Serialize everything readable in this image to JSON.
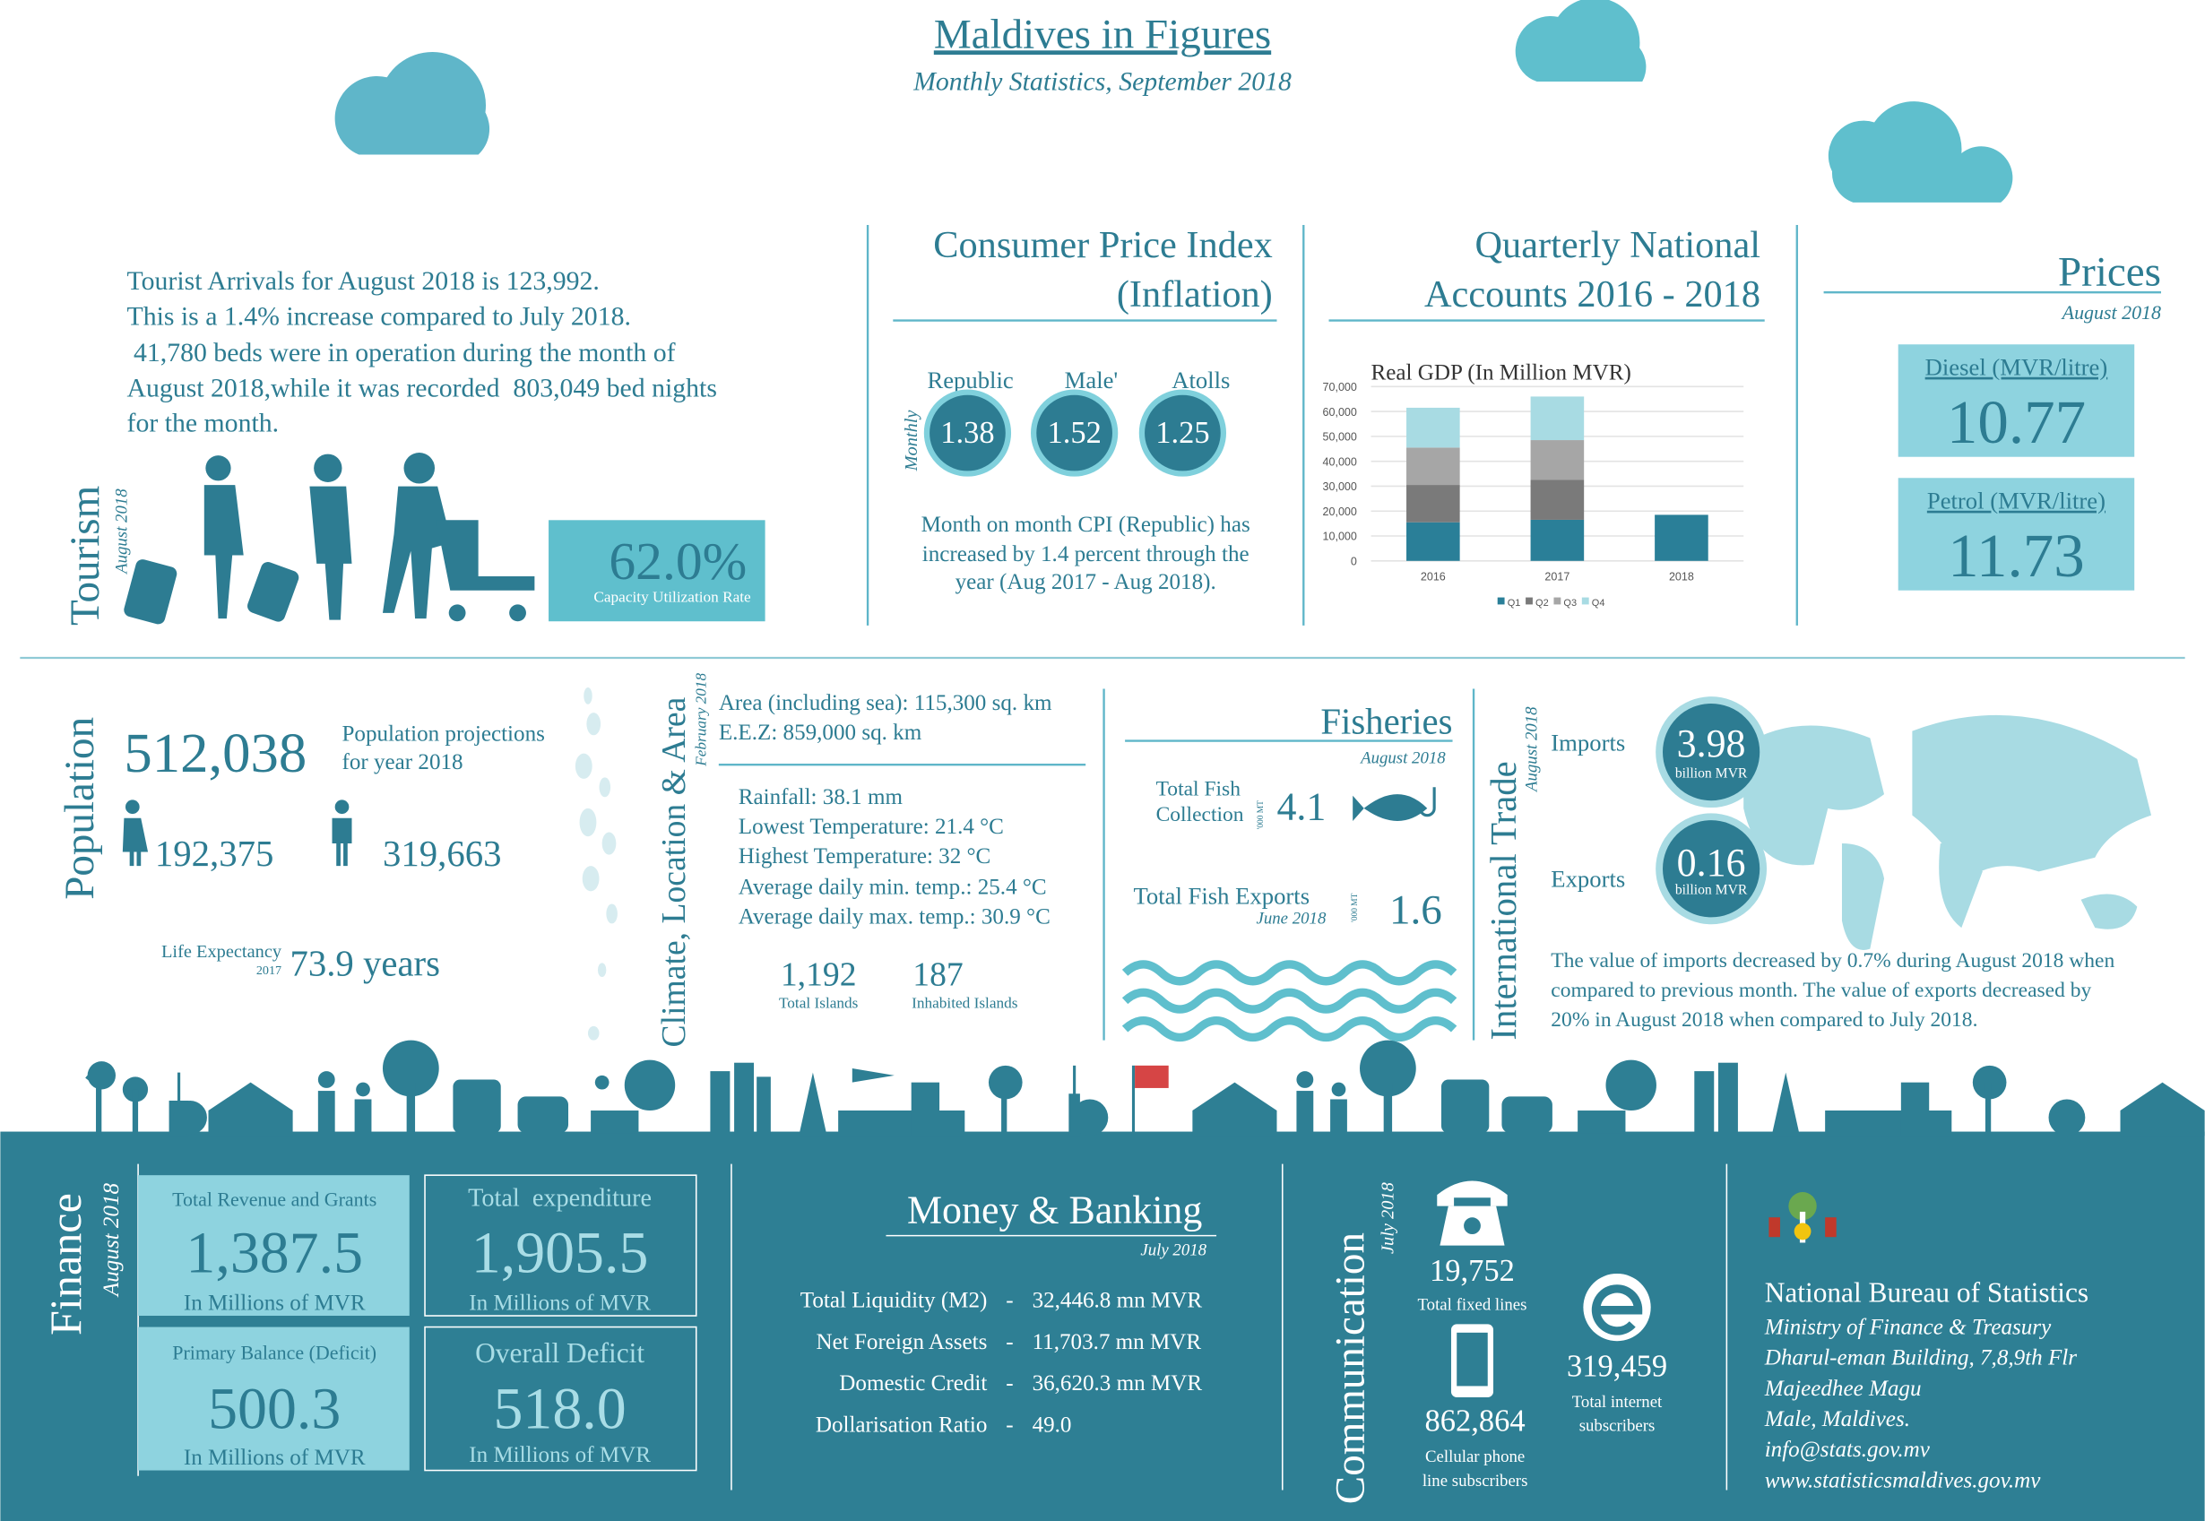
{
  "header": {
    "title": "Maldives in Figures",
    "subtitle": "Monthly Statistics, September 2018"
  },
  "tourism": {
    "label": "Tourism",
    "date": "August 2018",
    "text": [
      "Tourist Arrivals for August 2018 is 123,992.",
      "This is a 1.4% increase compared to July 2018.",
      " 41,780 beds were in operation during the month of",
      "August 2018,while it was recorded  803,049 bed nights",
      "for the month."
    ],
    "rate": "62.0%",
    "rate_label": "Capacity Utilization Rate"
  },
  "cpi": {
    "title": [
      "Consumer Price Index",
      "(Inflation)"
    ],
    "period": "Monthly",
    "items": [
      {
        "label": "Republic",
        "value": "1.38"
      },
      {
        "label": "Male'",
        "value": "1.52"
      },
      {
        "label": "Atolls",
        "value": "1.25"
      }
    ],
    "note": [
      "Month on month CPI (Republic) has",
      "increased by 1.4 percent through the",
      "year (Aug 2017 - Aug 2018)."
    ]
  },
  "national_accounts": {
    "title": [
      "Quarterly National",
      "Accounts 2016 - 2018"
    ]
  },
  "chart_data": {
    "type": "bar",
    "stacked": true,
    "title": "Real GDP (In Million MVR)",
    "categories": [
      "2016",
      "2017",
      "2018"
    ],
    "series": [
      {
        "name": "Q1",
        "color": "#2a7f98",
        "values": [
          15500,
          16500,
          18500
        ]
      },
      {
        "name": "Q2",
        "color": "#7a7a7a",
        "values": [
          15000,
          16000,
          null
        ]
      },
      {
        "name": "Q3",
        "color": "#a6a6a6",
        "values": [
          15000,
          16000,
          null
        ]
      },
      {
        "name": "Q4",
        "color": "#a8dbe3",
        "values": [
          16000,
          17500,
          null
        ]
      }
    ],
    "ylim": [
      0,
      70000
    ],
    "yticks": [
      0,
      {
        "value": 10000,
        "label": "10,000"
      },
      {
        "value": 20000,
        "label": "20,000"
      },
      {
        "value": 30000,
        "label": "30,000"
      },
      {
        "value": 40000,
        "label": "40,000"
      },
      {
        "value": 50000,
        "label": "50,000"
      },
      {
        "value": 60000,
        "label": "60,000"
      },
      {
        "value": 70000,
        "label": "70,000"
      }
    ],
    "grid": true,
    "legend": "bottom"
  },
  "prices": {
    "title": "Prices",
    "date": "August 2018",
    "items": [
      {
        "label": "Diesel (MVR/litre)",
        "value": "10.77"
      },
      {
        "label": "Petrol (MVR/litre)",
        "value": "11.73"
      }
    ]
  },
  "population": {
    "label": "Population",
    "value": "512,038",
    "note": [
      "Population projections",
      "for year 2018"
    ],
    "female": "192,375",
    "male": "319,663",
    "life_label": "Life Expectancy",
    "life_year": "2017",
    "life_value": "73.9 years"
  },
  "climate": {
    "label": "Climate, Location & Area",
    "date": "February 2018",
    "area": [
      "Area (including sea): 115,300 sq. km",
      "E.E.Z: 859,000 sq. km"
    ],
    "weather": [
      "Rainfall: 38.1 mm",
      "Lowest Temperature: 21.4 °C",
      "Highest Temperature: 32 °C",
      "Average daily min. temp.: 25.4 °C",
      "Average daily max. temp.: 30.9 °C"
    ],
    "islands": [
      {
        "value": "1,192",
        "label": "Total Islands"
      },
      {
        "value": "187",
        "label": "Inhabited Islands"
      }
    ]
  },
  "fisheries": {
    "title": "Fisheries",
    "date": "August 2018",
    "collection_label": [
      "Total Fish",
      "Collection"
    ],
    "collection_unit": "'000 MT",
    "collection_value": "4.1",
    "exports_label": "Total Fish Exports",
    "exports_date": "June 2018",
    "exports_unit": "'000 MT",
    "exports_value": "1.6"
  },
  "trade": {
    "label": "International Trade",
    "date": "August 2018",
    "imports_label": "Imports",
    "imports_value": "3.98",
    "imports_unit": "billion MVR",
    "exports_label": "Exports",
    "exports_value": "0.16",
    "exports_unit": "billion MVR",
    "note": [
      "The value of imports decreased by 0.7% during August 2018 when",
      "compared to previous month. The value of exports decreased by",
      "20% in August 2018 when compared to July 2018."
    ]
  },
  "finance": {
    "label": "Finance",
    "date": "August 2018",
    "boxes": [
      {
        "title": "Total Revenue and Grants",
        "value": "1,387.5",
        "unit": "In Millions of MVR"
      },
      {
        "title": "Total  expenditure",
        "value": "1,905.5",
        "unit": "In Millions of MVR"
      },
      {
        "title": "Primary Balance (Deficit)",
        "value": "500.3",
        "unit": "In Millions of MVR"
      },
      {
        "title": "Overall Deficit",
        "value": "518.0",
        "unit": "In Millions of MVR"
      }
    ]
  },
  "banking": {
    "title": "Money & Banking",
    "date": "July 2018",
    "rows": [
      [
        "Total Liquidity (M2)",
        "-",
        "32,446.8 mn MVR"
      ],
      [
        "Net Foreign Assets",
        "-",
        "11,703.7 mn MVR"
      ],
      [
        "Domestic Credit",
        "-",
        "36,620.3 mn MVR"
      ],
      [
        "Dollarisation Ratio",
        "-",
        "49.0"
      ]
    ]
  },
  "communication": {
    "label": "Communication",
    "date": "July 2018",
    "fixed_value": "19,752",
    "fixed_label": "Total fixed lines",
    "cellular_value": "862,864",
    "cellular_label": [
      "Cellular phone",
      "line subscribers"
    ],
    "internet_value": "319,459",
    "internet_label": [
      "Total internet",
      "subscribers"
    ]
  },
  "contact": {
    "org": "National Bureau of Statistics",
    "lines": [
      "Ministry of Finance & Treasury",
      "Dharul-eman Building, 7,8,9th Flr",
      "Majeedhee Magu",
      "Male, Maldives.",
      "info@stats.gov.mv",
      "www.statisticsmaldives.gov.mv"
    ]
  }
}
